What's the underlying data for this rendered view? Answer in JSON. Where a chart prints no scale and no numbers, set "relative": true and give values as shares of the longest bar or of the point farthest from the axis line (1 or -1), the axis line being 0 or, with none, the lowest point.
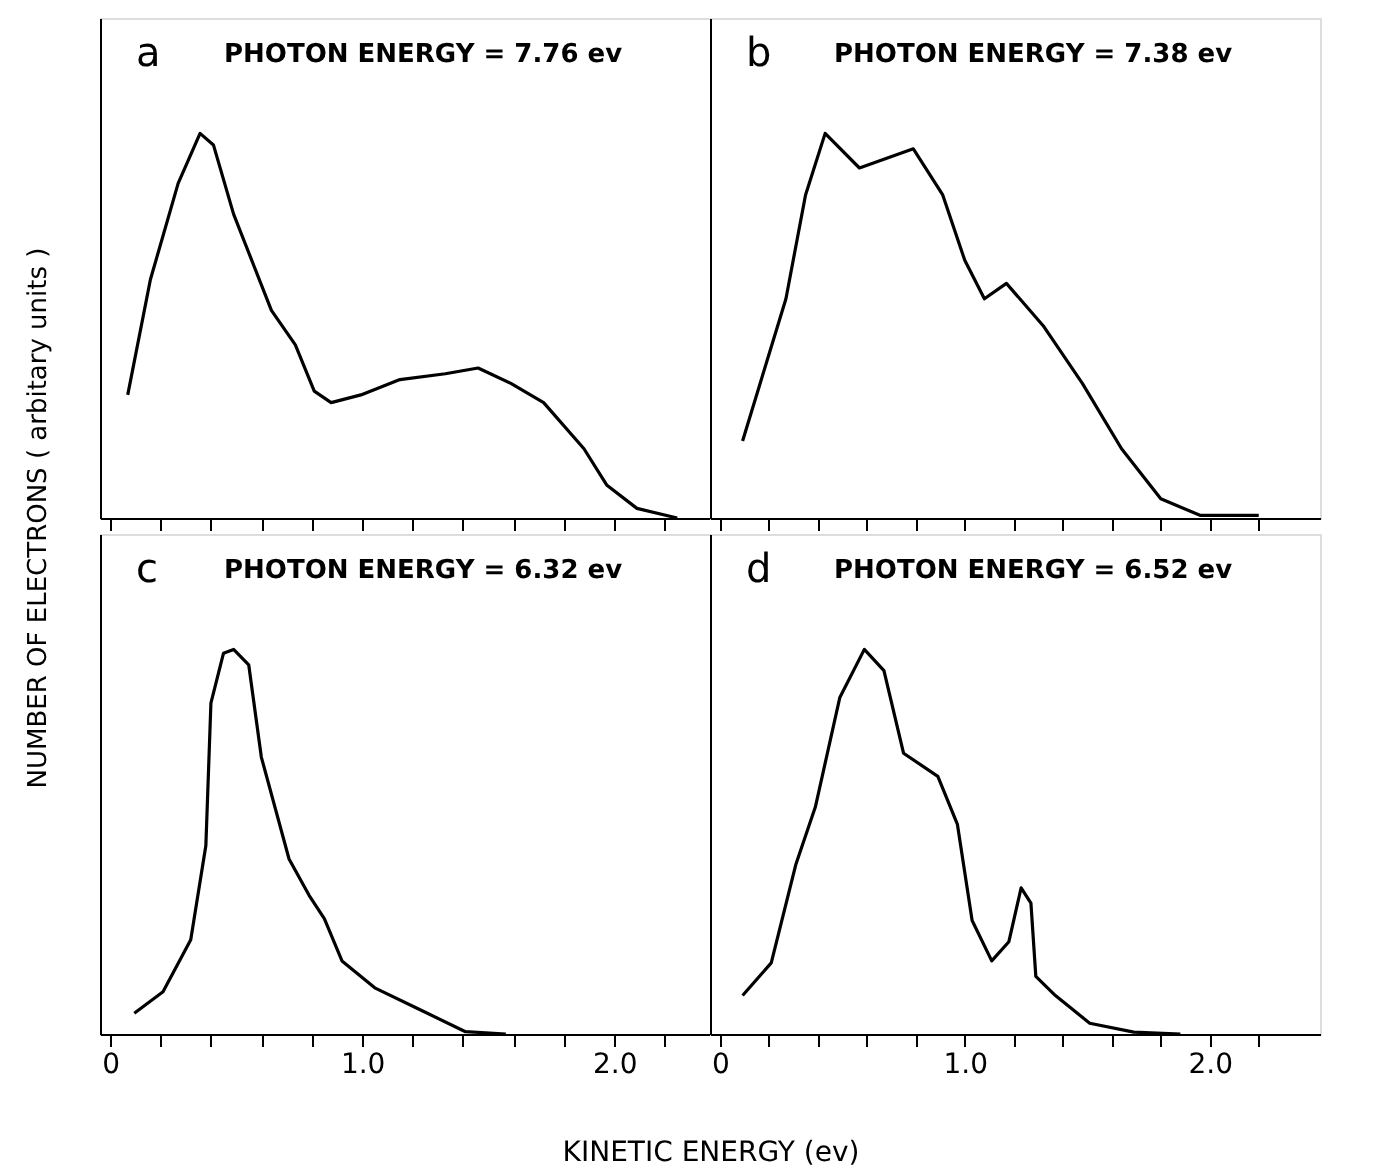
{
  "chart_data": [
    {
      "type": "line",
      "relative": true,
      "annotations": [
        "a",
        "PHOTON ENERGY = 7.76 ev"
      ],
      "ylabel": "NUMBER OF ELECTRONS ( arbitary units )",
      "tick_labels": false,
      "xlim": [
        -0.04,
        2.38
      ],
      "xticks": [
        {
          "value": 0,
          "label": null
        },
        {
          "value": 0.2,
          "label": null
        },
        {
          "value": 0.4,
          "label": null
        },
        {
          "value": 0.6,
          "label": null
        },
        {
          "value": 0.8,
          "label": null
        },
        {
          "value": 1,
          "label": null
        },
        {
          "value": 1.2,
          "label": null
        },
        {
          "value": 1.4,
          "label": null
        },
        {
          "value": 1.6,
          "label": null
        },
        {
          "value": 1.8,
          "label": null
        },
        {
          "value": 2,
          "label": null
        },
        {
          "value": 2.2,
          "label": null
        }
      ],
      "series": [
        {
          "color": "#000000",
          "x": [
            0.07,
            0.16,
            0.27,
            0.357,
            0.41,
            0.49,
            0.64,
            0.735,
            0.81,
            0.877,
            0.995,
            1.15,
            1.33,
            1.46,
            1.59,
            1.72,
            1.88,
            1.97,
            2.09,
            2.25
          ],
          "values": [
            0.32,
            0.62,
            0.87,
            1,
            0.97,
            0.79,
            0.54,
            0.45,
            0.33,
            0.3,
            0.32,
            0.36,
            0.375,
            0.39,
            0.35,
            0.3,
            0.18,
            0.086,
            0.025,
            0
          ]
        }
      ]
    },
    {
      "type": "line",
      "relative": true,
      "annotations": [
        "b",
        "PHOTON ENERGY = 7.38 ev"
      ],
      "tick_labels": false,
      "xlim": [
        -0.04,
        2.45
      ],
      "xticks": [
        {
          "value": 0,
          "label": null
        },
        {
          "value": 0.2,
          "label": null
        },
        {
          "value": 0.4,
          "label": null
        },
        {
          "value": 0.6,
          "label": null
        },
        {
          "value": 0.8,
          "label": null
        },
        {
          "value": 1,
          "label": null
        },
        {
          "value": 1.2,
          "label": null
        },
        {
          "value": 1.4,
          "label": null
        },
        {
          "value": 1.6,
          "label": null
        },
        {
          "value": 1.8,
          "label": null
        },
        {
          "value": 2,
          "label": null
        },
        {
          "value": 2.2,
          "label": null
        }
      ],
      "series": [
        {
          "color": "#000000",
          "x": [
            0.093,
            0.27,
            0.35,
            0.43,
            0.57,
            0.79,
            0.91,
            1.0,
            1.08,
            1.17,
            1.32,
            1.48,
            1.64,
            1.8,
            1.96,
            2.2
          ],
          "values": [
            0.2,
            0.57,
            0.84,
            1,
            0.91,
            0.96,
            0.84,
            0.67,
            0.57,
            0.61,
            0.5,
            0.35,
            0.18,
            0.05,
            0.007,
            0.007
          ]
        }
      ]
    },
    {
      "type": "line",
      "relative": true,
      "annotations": [
        "c",
        "PHOTON ENERGY = 6.32 ev"
      ],
      "xlabel": "KINETIC ENERGY (ev)",
      "tick_labels": "x",
      "xlim": [
        -0.04,
        2.38
      ],
      "xticks": [
        0,
        {
          "value": 0.2,
          "label": null
        },
        {
          "value": 0.4,
          "label": null
        },
        {
          "value": 0.6,
          "label": null
        },
        {
          "value": 0.8,
          "label": null
        },
        {
          "value": 1,
          "label": "1.0"
        },
        {
          "value": 1.2,
          "label": null
        },
        {
          "value": 1.4,
          "label": null
        },
        {
          "value": 1.6,
          "label": null
        },
        {
          "value": 1.8,
          "label": null
        },
        {
          "value": 2,
          "label": "2.0"
        },
        {
          "value": 2.2,
          "label": null
        }
      ],
      "series": [
        {
          "color": "#000000",
          "x": [
            0.096,
            0.21,
            0.32,
            0.38,
            0.4,
            0.45,
            0.49,
            0.55,
            0.6,
            0.71,
            0.79,
            0.85,
            0.92,
            1.05,
            1.23,
            1.41,
            1.57
          ],
          "values": [
            0.054,
            0.11,
            0.245,
            0.49,
            0.86,
            0.99,
            1,
            0.96,
            0.72,
            0.455,
            0.36,
            0.3,
            0.19,
            0.12,
            0.063,
            0.006,
            0
          ]
        }
      ]
    },
    {
      "type": "line",
      "relative": true,
      "annotations": [
        "d",
        "PHOTON ENERGY = 6.52 ev"
      ],
      "tick_labels": "x",
      "xlim": [
        -0.04,
        2.45
      ],
      "xticks": [
        0,
        {
          "value": 0.2,
          "label": null
        },
        {
          "value": 0.4,
          "label": null
        },
        {
          "value": 0.6,
          "label": null
        },
        {
          "value": 0.8,
          "label": null
        },
        {
          "value": 1,
          "label": "1.0"
        },
        {
          "value": 1.2,
          "label": null
        },
        {
          "value": 1.4,
          "label": null
        },
        {
          "value": 1.6,
          "label": null
        },
        {
          "value": 1.8,
          "label": null
        },
        {
          "value": 2,
          "label": "2.0"
        },
        {
          "value": 2.2,
          "label": null
        }
      ],
      "series": [
        {
          "color": "#000000",
          "x": [
            0.093,
            0.21,
            0.31,
            0.39,
            0.49,
            0.59,
            0.67,
            0.75,
            0.89,
            0.97,
            1.03,
            1.11,
            1.18,
            1.23,
            1.27,
            1.29,
            1.37,
            1.51,
            1.69,
            1.88
          ],
          "values": [
            0.1,
            0.185,
            0.44,
            0.59,
            0.875,
            1,
            0.945,
            0.73,
            0.67,
            0.545,
            0.295,
            0.19,
            0.24,
            0.38,
            0.34,
            0.15,
            0.1,
            0.028,
            0.005,
            0
          ]
        }
      ]
    }
  ]
}
